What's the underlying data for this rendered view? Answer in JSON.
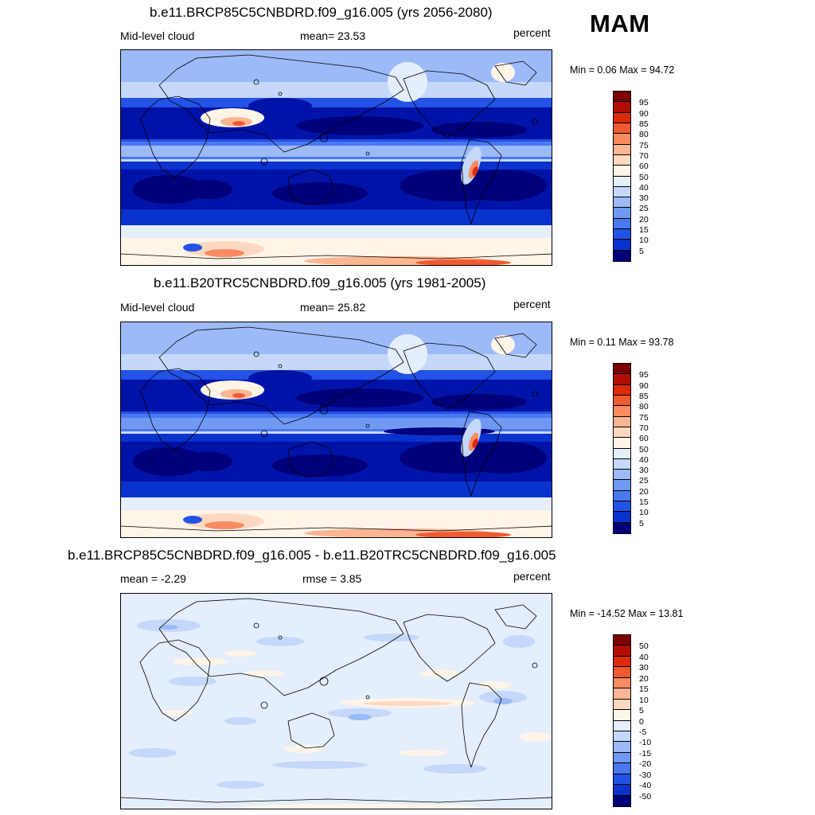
{
  "season": "MAM",
  "palette": [
    "#00007a",
    "#0013a8",
    "#0a32cc",
    "#2352e6",
    "#4a78f0",
    "#7199f4",
    "#9cbaf7",
    "#c5d7fa",
    "#e4eefc",
    "#fff4e8",
    "#fdd8c0",
    "#fbb592",
    "#f88b60",
    "#f05a30",
    "#dc2a0c",
    "#b20e00",
    "#7d0000"
  ],
  "panels": [
    {
      "title": "b.e11.BRCP85C5CNBDRD.f09_g16.005 (yrs 2056-2080)",
      "left_label": "Mid-level cloud",
      "mid_label": "mean=  23.53",
      "units": "percent",
      "minmax": "Min =   0.06 Max =  94.72",
      "colorbar_labels": [
        "95",
        "90",
        "85",
        "80",
        "75",
        "70",
        "60",
        "50",
        "40",
        "30",
        "25",
        "20",
        "15",
        "10",
        "5"
      ],
      "colorbar_colors": [
        "#7d0000",
        "#b20e00",
        "#dc2a0c",
        "#f05a30",
        "#f88b60",
        "#fbb592",
        "#fdd8c0",
        "#fff4e8",
        "#e4eefc",
        "#c5d7fa",
        "#9cbaf7",
        "#7199f4",
        "#4a78f0",
        "#2352e6",
        "#0a32cc",
        "#00007a"
      ]
    },
    {
      "title": "b.e11.B20TRC5CNBDRD.f09_g16.005 (yrs 1981-2005)",
      "left_label": "Mid-level cloud",
      "mid_label": "mean=  25.82",
      "units": "percent",
      "minmax": "Min =   0.11 Max =  93.78",
      "colorbar_labels": [
        "95",
        "90",
        "85",
        "80",
        "75",
        "70",
        "60",
        "50",
        "40",
        "30",
        "25",
        "20",
        "15",
        "10",
        "5"
      ],
      "colorbar_colors": [
        "#7d0000",
        "#b20e00",
        "#dc2a0c",
        "#f05a30",
        "#f88b60",
        "#fbb592",
        "#fdd8c0",
        "#fff4e8",
        "#e4eefc",
        "#c5d7fa",
        "#9cbaf7",
        "#7199f4",
        "#4a78f0",
        "#2352e6",
        "#0a32cc",
        "#00007a"
      ]
    },
    {
      "title": "b.e11.BRCP85C5CNBDRD.f09_g16.005 - b.e11.B20TRC5CNBDRD.f09_g16.005",
      "left_label": "mean =  -2.29",
      "mid_label": "rmse =   3.85",
      "units": "percent",
      "minmax": "Min = -14.52 Max =  13.81",
      "colorbar_labels": [
        "50",
        "40",
        "30",
        "20",
        "15",
        "10",
        "5",
        "0",
        "-5",
        "-10",
        "-15",
        "-20",
        "-30",
        "-40",
        "-50"
      ],
      "colorbar_colors": [
        "#7d0000",
        "#b20e00",
        "#dc2a0c",
        "#f05a30",
        "#f88b60",
        "#fbb592",
        "#fdd8c0",
        "#fff4e8",
        "#e4eefc",
        "#c5d7fa",
        "#9cbaf7",
        "#7199f4",
        "#4a78f0",
        "#2352e6",
        "#0a32cc",
        "#00007a"
      ]
    }
  ]
}
